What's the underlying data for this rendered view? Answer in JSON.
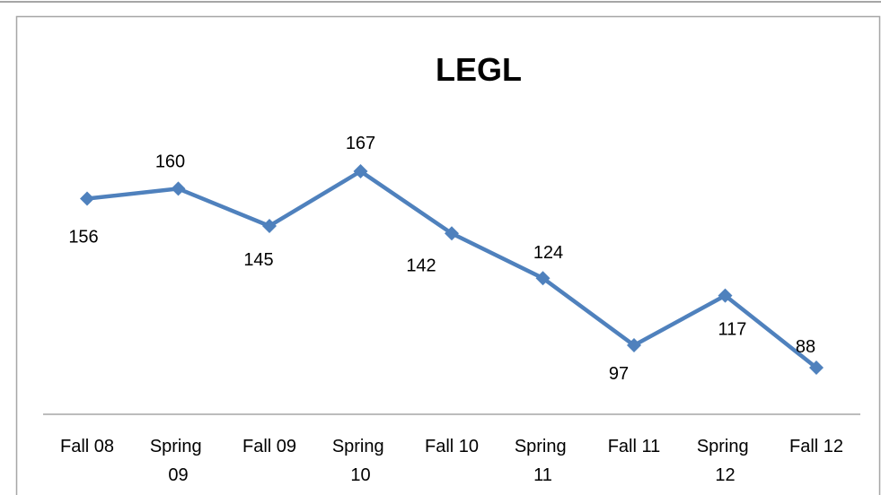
{
  "chart_data": {
    "type": "line",
    "title": "LEGL",
    "categories": [
      "Fall 08",
      "Spring 09",
      "Fall 09",
      "Spring 10",
      "Fall 10",
      "Spring 11",
      "Fall 11",
      "Spring 12",
      "Fall 12"
    ],
    "series": [
      {
        "name": "LEGL",
        "color": "#4f81bd",
        "values": [
          156,
          160,
          145,
          167,
          142,
          124,
          97,
          117,
          88
        ]
      }
    ]
  }
}
